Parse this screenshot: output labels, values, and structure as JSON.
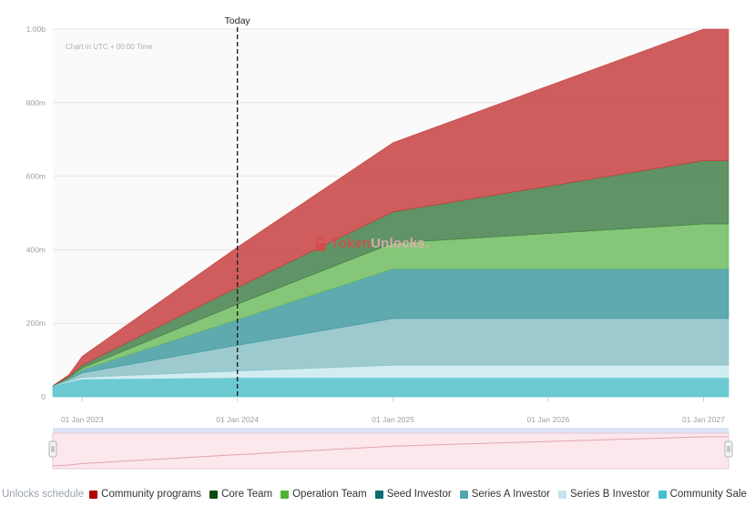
{
  "chart_data": {
    "type": "area",
    "stacked": true,
    "title": "",
    "note": "Chart in UTC + 00:00 Time",
    "today_label": "Today",
    "x_ticks": [
      "01 Jan 2023",
      "01 Jan 2024",
      "01 Jan 2025",
      "01 Jan 2026",
      "01 Jan 2027"
    ],
    "y_ticks": [
      "0",
      "200m",
      "400m",
      "600m",
      "800m",
      "1.00b"
    ],
    "ylim": [
      0,
      1000000000
    ],
    "xlim": [
      "2022-10-24",
      "2027-03-01"
    ],
    "today": "2024-01-01",
    "x": [
      "2022-10-24",
      "2022-12-01",
      "2023-01-01",
      "2024-01-01",
      "2025-01-01",
      "2027-01-01",
      "2027-03-01"
    ],
    "series": [
      {
        "name": "Community Sale",
        "color": "#4dbfca",
        "values": [
          30000000,
          40000000,
          48000000,
          52000000,
          52000000,
          52000000,
          52000000
        ]
      },
      {
        "name": "Series B Investor",
        "color": "#c8eaf0",
        "values": [
          0,
          2000000,
          5000000,
          18000000,
          34000000,
          34000000,
          34000000
        ]
      },
      {
        "name": "Series A Investor",
        "color": "#88bfc5",
        "values": [
          0,
          5000000,
          12000000,
          70000000,
          127000000,
          127000000,
          127000000
        ]
      },
      {
        "name": "Seed Investor",
        "color": "#3d989e",
        "values": [
          0,
          3000000,
          8000000,
          70000000,
          135000000,
          135000000,
          135000000
        ]
      },
      {
        "name": "Operation Team",
        "color": "#6cbb5c",
        "values": [
          0,
          2000000,
          5000000,
          42000000,
          70000000,
          122000000,
          122000000
        ]
      },
      {
        "name": "Core Team",
        "color": "#3e7d45",
        "values": [
          0,
          3000000,
          8000000,
          45000000,
          85000000,
          172000000,
          172000000
        ]
      },
      {
        "name": "Community programs",
        "color": "#c63a3a",
        "values": [
          0,
          5000000,
          24000000,
          110000000,
          188000000,
          358000000,
          358000000
        ]
      }
    ]
  },
  "legend": {
    "title": "Unlocks schedule",
    "items": [
      {
        "label": "Community programs",
        "color": "#b30000"
      },
      {
        "label": "Core Team",
        "color": "#0b4d12"
      },
      {
        "label": "Operation Team",
        "color": "#4fb336"
      },
      {
        "label": "Seed Investor",
        "color": "#0b6b70"
      },
      {
        "label": "Series A Investor",
        "color": "#52a7b0"
      },
      {
        "label": "Series B Investor",
        "color": "#c3e6ee"
      },
      {
        "label": "Community Sale",
        "color": "#45bfd1"
      }
    ]
  },
  "watermark": {
    "part_a": "Token",
    "part_b": "Unlocks."
  }
}
